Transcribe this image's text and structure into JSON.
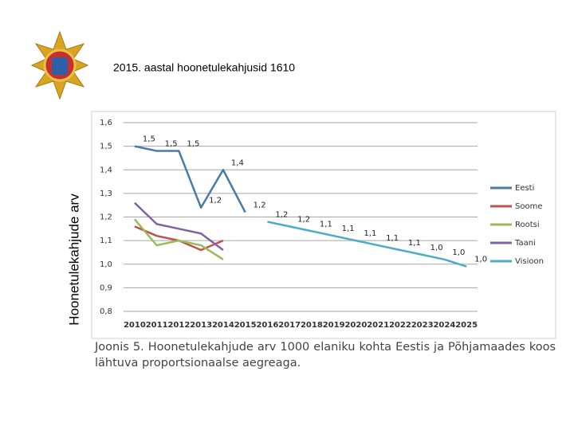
{
  "chart_data": {
    "type": "line",
    "title": "2015. aastal hoonetulekahjusid 1610",
    "y_label": "Hoonetulekahjude arv",
    "caption": "Joonis 5. Hoonetulekahjude arv 1000 elaniku kohta Eestis ja Põhjamaades koos lähtuva proportsionaalse aegreaga.",
    "categories": [
      "2010",
      "2011",
      "2012",
      "2013",
      "2014",
      "2015",
      "2016",
      "2017",
      "2018",
      "2019",
      "2020",
      "2021",
      "2022",
      "2023",
      "2024",
      "2025"
    ],
    "ylim": [
      0.8,
      1.6
    ],
    "yticks": [
      {
        "value": 0.8,
        "label": "0,8"
      },
      {
        "value": 0.9,
        "label": "0,9"
      },
      {
        "value": 1.0,
        "label": "1,0"
      },
      {
        "value": 1.1,
        "label": "1,1"
      },
      {
        "value": 1.2,
        "label": "1,2"
      },
      {
        "value": 1.3,
        "label": "1,3"
      },
      {
        "value": 1.4,
        "label": "1,4"
      },
      {
        "value": 1.5,
        "label": "1,5"
      },
      {
        "value": 1.6,
        "label": "1,6"
      }
    ],
    "grid": true,
    "legend": "right",
    "series": [
      {
        "name": "Eesti",
        "color": "#4a7ba7",
        "values": [
          1.5,
          1.48,
          1.48,
          1.24,
          1.4,
          1.22,
          null,
          null,
          null,
          null,
          null,
          null,
          null,
          null,
          null,
          null
        ],
        "value_labels": [
          "1,5",
          "1,5",
          "1,5",
          "1,2",
          "1,4",
          "1,2",
          null,
          null,
          null,
          null,
          null,
          null,
          null,
          null,
          null,
          null
        ]
      },
      {
        "name": "Soome",
        "color": "#c0504d",
        "values": [
          1.16,
          1.12,
          1.1,
          1.06,
          1.1,
          null,
          null,
          null,
          null,
          null,
          null,
          null,
          null,
          null,
          null,
          null
        ]
      },
      {
        "name": "Rootsi",
        "color": "#9bbb59",
        "values": [
          1.19,
          1.08,
          1.1,
          1.08,
          1.02,
          null,
          null,
          null,
          null,
          null,
          null,
          null,
          null,
          null,
          null,
          null
        ]
      },
      {
        "name": "Taani",
        "color": "#8064a2",
        "values": [
          1.26,
          1.17,
          1.15,
          1.13,
          1.06,
          null,
          null,
          null,
          null,
          null,
          null,
          null,
          null,
          null,
          null,
          null
        ]
      },
      {
        "name": "Visioon",
        "color": "#4bacc6",
        "values": [
          null,
          null,
          null,
          null,
          null,
          null,
          1.18,
          1.16,
          1.14,
          1.12,
          1.1,
          1.08,
          1.06,
          1.04,
          1.02,
          0.99
        ],
        "value_labels": [
          null,
          null,
          null,
          null,
          null,
          null,
          "1,2",
          "1,2",
          "1,1",
          "1,1",
          "1,1",
          "1,1",
          "1,1",
          "1,0",
          "1,0",
          "1,0"
        ]
      }
    ]
  }
}
